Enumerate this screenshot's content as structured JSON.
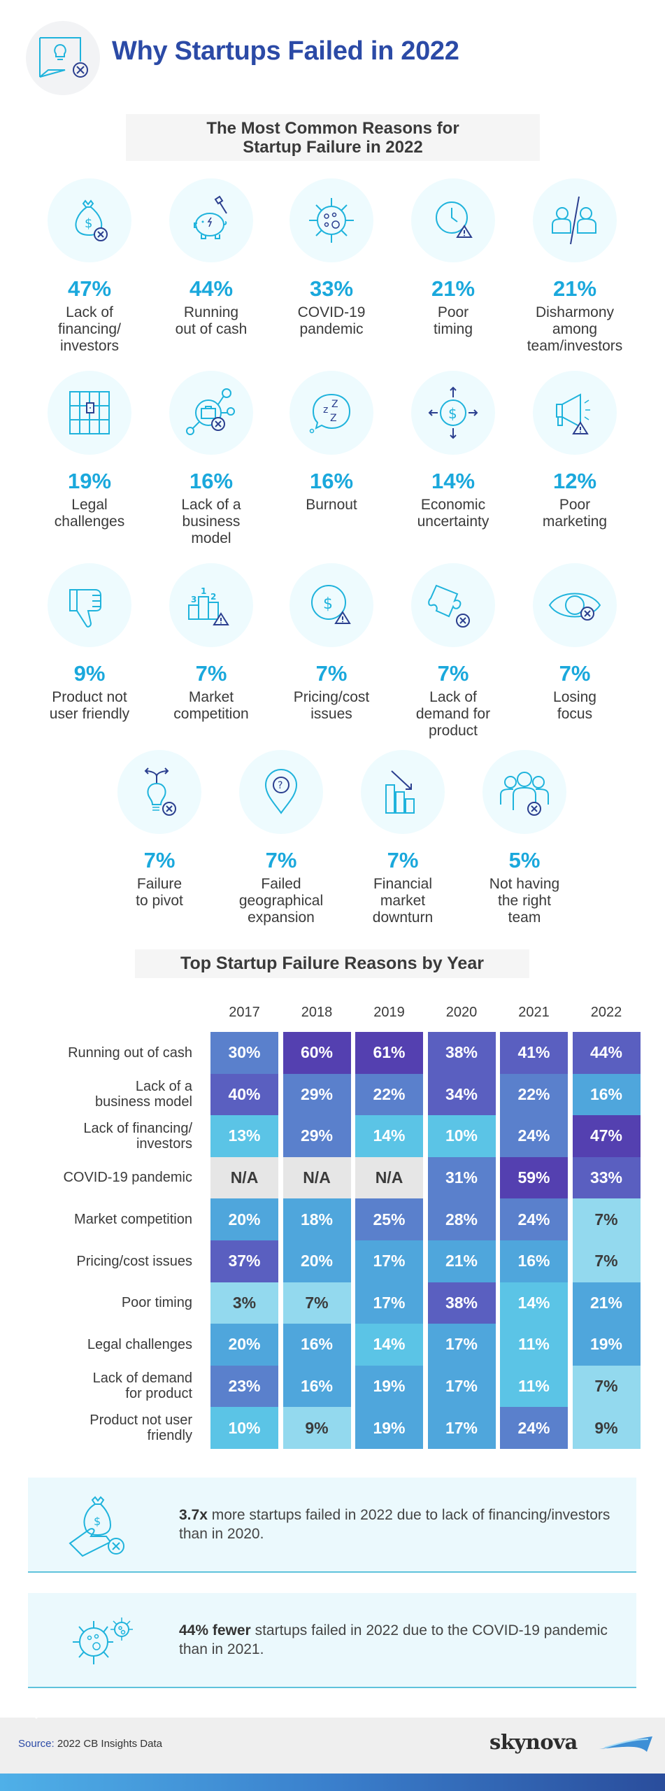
{
  "header": {
    "title": "Why Startups Failed in 2022",
    "icon": "lightbulb-chat-x-icon"
  },
  "section1": {
    "title": "The Most Common Reasons for\nStartup Failure in 2022",
    "title_line1": "The Most Common Reasons for",
    "title_line2": "Startup Failure in 2022",
    "reasons": [
      {
        "pct": "47%",
        "label": "Lack of\nfinancing/\ninvestors",
        "icon": "money-bag-x-icon"
      },
      {
        "pct": "44%",
        "label": "Running\nout of cash",
        "icon": "broken-piggy-bank-icon"
      },
      {
        "pct": "33%",
        "label": "COVID-19\npandemic",
        "icon": "virus-icon"
      },
      {
        "pct": "21%",
        "label": "Poor\ntiming",
        "icon": "clock-warning-icon"
      },
      {
        "pct": "21%",
        "label": "Disharmony\namong\nteam/investors",
        "icon": "split-people-icon"
      },
      {
        "pct": "19%",
        "label": "Legal\nchallenges",
        "icon": "jail-bars-icon"
      },
      {
        "pct": "16%",
        "label": "Lack of a\nbusiness\nmodel",
        "icon": "briefcase-network-x-icon"
      },
      {
        "pct": "16%",
        "label": "Burnout",
        "icon": "sleep-zzz-icon"
      },
      {
        "pct": "14%",
        "label": "Economic\nuncertainty",
        "icon": "dollar-arrows-icon"
      },
      {
        "pct": "12%",
        "label": "Poor\nmarketing",
        "icon": "megaphone-warning-icon"
      },
      {
        "pct": "9%",
        "label": "Product not\nuser friendly",
        "icon": "thumbs-down-icon"
      },
      {
        "pct": "7%",
        "label": "Market\ncompetition",
        "icon": "podium-warning-icon"
      },
      {
        "pct": "7%",
        "label": "Pricing/cost\nissues",
        "icon": "dollar-coin-warning-icon"
      },
      {
        "pct": "7%",
        "label": "Lack of\ndemand for\nproduct",
        "icon": "puzzle-piece-x-icon"
      },
      {
        "pct": "7%",
        "label": "Losing\nfocus",
        "icon": "eye-x-icon"
      },
      {
        "pct": "7%",
        "label": "Failure\nto pivot",
        "icon": "lightbulb-fork-x-icon"
      },
      {
        "pct": "7%",
        "label": "Failed\ngeographical\nexpansion",
        "icon": "location-pin-question-icon"
      },
      {
        "pct": "7%",
        "label": "Financial\nmarket\ndownturn",
        "icon": "bar-chart-down-icon"
      },
      {
        "pct": "5%",
        "label": "Not having\nthe right\nteam",
        "icon": "team-x-icon"
      }
    ]
  },
  "section2": {
    "title": "Top Startup Failure Reasons by Year",
    "years": [
      "2017",
      "2018",
      "2019",
      "2020",
      "2021",
      "2022"
    ],
    "rows": [
      {
        "label": "Running out of cash",
        "values": [
          "30%",
          "60%",
          "61%",
          "38%",
          "41%",
          "44%"
        ]
      },
      {
        "label": "Lack of a\nbusiness model",
        "values": [
          "40%",
          "29%",
          "22%",
          "34%",
          "22%",
          "16%"
        ]
      },
      {
        "label": "Lack of financing/\ninvestors",
        "values": [
          "13%",
          "29%",
          "14%",
          "10%",
          "24%",
          "47%"
        ]
      },
      {
        "label": "COVID-19 pandemic",
        "values": [
          "N/A",
          "N/A",
          "N/A",
          "31%",
          "59%",
          "33%"
        ]
      },
      {
        "label": "Market competition",
        "values": [
          "20%",
          "18%",
          "25%",
          "28%",
          "24%",
          "7%"
        ]
      },
      {
        "label": "Pricing/cost issues",
        "values": [
          "37%",
          "20%",
          "17%",
          "21%",
          "16%",
          "7%"
        ]
      },
      {
        "label": "Poor timing",
        "values": [
          "3%",
          "7%",
          "17%",
          "38%",
          "14%",
          "21%"
        ]
      },
      {
        "label": "Legal challenges",
        "values": [
          "20%",
          "16%",
          "14%",
          "17%",
          "11%",
          "19%"
        ]
      },
      {
        "label": "Lack of demand\nfor product",
        "values": [
          "23%",
          "16%",
          "19%",
          "17%",
          "11%",
          "7%"
        ]
      },
      {
        "label": "Product not user\nfriendly",
        "values": [
          "10%",
          "9%",
          "19%",
          "17%",
          "24%",
          "9%"
        ]
      }
    ]
  },
  "chart_data": {
    "type": "heatmap",
    "title": "Top Startup Failure Reasons by Year",
    "x": [
      "2017",
      "2018",
      "2019",
      "2020",
      "2021",
      "2022"
    ],
    "y": [
      "Running out of cash",
      "Lack of a business model",
      "Lack of financing/investors",
      "COVID-19 pandemic",
      "Market competition",
      "Pricing/cost issues",
      "Poor timing",
      "Legal challenges",
      "Lack of demand for product",
      "Product not user friendly"
    ],
    "values": [
      [
        30,
        60,
        61,
        38,
        41,
        44
      ],
      [
        40,
        29,
        22,
        34,
        22,
        16
      ],
      [
        13,
        29,
        14,
        10,
        24,
        47
      ],
      [
        null,
        null,
        null,
        31,
        59,
        33
      ],
      [
        20,
        18,
        25,
        28,
        24,
        7
      ],
      [
        37,
        20,
        17,
        21,
        16,
        7
      ],
      [
        3,
        7,
        17,
        38,
        14,
        21
      ],
      [
        20,
        16,
        14,
        17,
        11,
        19
      ],
      [
        23,
        16,
        19,
        17,
        11,
        7
      ],
      [
        10,
        9,
        19,
        17,
        24,
        9
      ]
    ],
    "unit": "%",
    "missing_label": "N/A",
    "color_scale": [
      "#93d9ee",
      "#5bc4e6",
      "#4fa6dc",
      "#5a80cc",
      "#5a5fc0",
      "#5440b0"
    ],
    "missing_color": "#e6e6e6"
  },
  "callouts": [
    {
      "bold": "3.7x",
      "text": " more startups failed in 2022 due to lack of financing/investors than in 2020.",
      "icon": "hand-money-bag-x-icon"
    },
    {
      "bold": "44% fewer",
      "text": " startups failed in 2022 due to the COVID-19 pandemic than in 2021.",
      "icon": "viruses-icon"
    }
  ],
  "footer": {
    "source_label": "Source:",
    "source_text": " 2022 CB Insights Data",
    "logo_text": "skynova"
  },
  "colors": {
    "title_blue": "#2b4aa6",
    "pct_cyan": "#1aa8dc",
    "icon_cyan": "#1fb3dc",
    "icon_navy": "#2b3f8f"
  }
}
